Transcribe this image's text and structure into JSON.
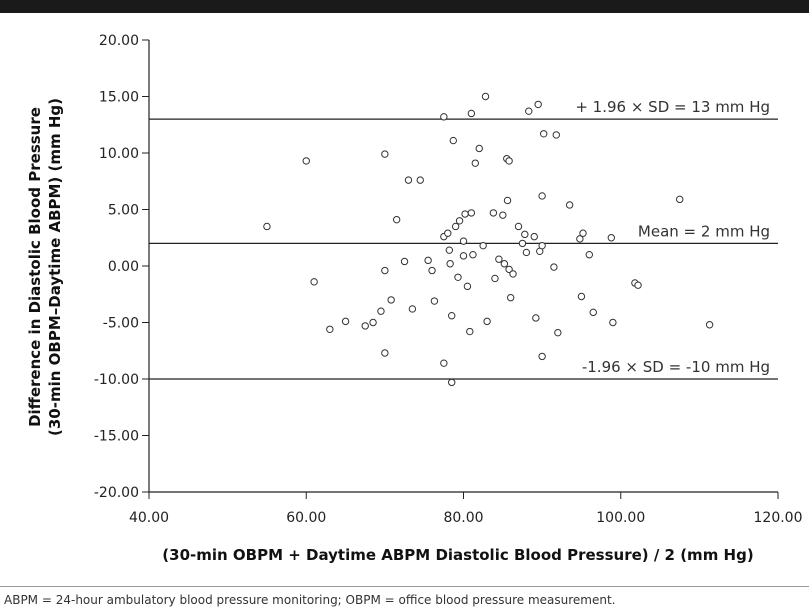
{
  "chart_data": {
    "type": "scatter",
    "xlabel": "(30-min OBPM + Daytime ABPM Diastolic Blood Pressure) / 2 (mm Hg)",
    "ylabel_line1": "Difference in Diastolic Blood Pressure",
    "ylabel_line2": "(30-min OBPM–Daytime ABPM) (mm Hg)",
    "xlim": [
      40,
      120
    ],
    "ylim": [
      -20,
      20
    ],
    "x_ticks": [
      {
        "value": 40,
        "label": "40.00"
      },
      {
        "value": 60,
        "label": "60.00"
      },
      {
        "value": 80,
        "label": "80.00"
      },
      {
        "value": 100,
        "label": "100.00"
      },
      {
        "value": 120,
        "label": "120.00"
      }
    ],
    "y_ticks": [
      {
        "value": 20,
        "label": "20.00"
      },
      {
        "value": 15,
        "label": "15.00"
      },
      {
        "value": 10,
        "label": "10.00"
      },
      {
        "value": 5,
        "label": "5.00"
      },
      {
        "value": 0,
        "label": "0.00"
      },
      {
        "value": -5,
        "label": "-5.00"
      },
      {
        "value": -10,
        "label": "-10.00"
      },
      {
        "value": -15,
        "label": "-15.00"
      },
      {
        "value": -20,
        "label": "-20.00"
      }
    ],
    "reference_lines": [
      {
        "y": 13,
        "label": "+ 1.96 × SD = 13 mm Hg"
      },
      {
        "y": 2,
        "label": "Mean = 2 mm Hg"
      },
      {
        "y": -10,
        "label": "-1.96 × SD = -10 mm Hg"
      }
    ],
    "points": [
      {
        "x": 55.0,
        "y": 3.5
      },
      {
        "x": 60.0,
        "y": 9.3
      },
      {
        "x": 61.0,
        "y": -1.4
      },
      {
        "x": 63.0,
        "y": -5.6
      },
      {
        "x": 65.0,
        "y": -4.9
      },
      {
        "x": 67.5,
        "y": -5.3
      },
      {
        "x": 68.5,
        "y": -5.0
      },
      {
        "x": 69.5,
        "y": -4.0
      },
      {
        "x": 70.0,
        "y": 9.9
      },
      {
        "x": 70.0,
        "y": -0.4
      },
      {
        "x": 70.0,
        "y": -7.7
      },
      {
        "x": 70.8,
        "y": -3.0
      },
      {
        "x": 71.5,
        "y": 4.1
      },
      {
        "x": 72.5,
        "y": 0.4
      },
      {
        "x": 73.0,
        "y": 7.6
      },
      {
        "x": 73.5,
        "y": -3.8
      },
      {
        "x": 74.5,
        "y": 7.6
      },
      {
        "x": 75.5,
        "y": 0.5
      },
      {
        "x": 76.0,
        "y": -0.4
      },
      {
        "x": 76.3,
        "y": -3.1
      },
      {
        "x": 77.5,
        "y": 13.2
      },
      {
        "x": 77.5,
        "y": 2.6
      },
      {
        "x": 77.5,
        "y": -8.6
      },
      {
        "x": 78.0,
        "y": 2.9
      },
      {
        "x": 78.2,
        "y": 1.4
      },
      {
        "x": 78.3,
        "y": 0.2
      },
      {
        "x": 78.5,
        "y": -4.4
      },
      {
        "x": 78.5,
        "y": -10.3
      },
      {
        "x": 78.7,
        "y": 11.1
      },
      {
        "x": 79.0,
        "y": 3.5
      },
      {
        "x": 79.3,
        "y": -1.0
      },
      {
        "x": 79.5,
        "y": 4.0
      },
      {
        "x": 80.0,
        "y": 2.2
      },
      {
        "x": 80.0,
        "y": 0.9
      },
      {
        "x": 80.2,
        "y": 4.6
      },
      {
        "x": 80.5,
        "y": -1.8
      },
      {
        "x": 80.8,
        "y": -5.8
      },
      {
        "x": 81.0,
        "y": 4.7
      },
      {
        "x": 81.0,
        "y": 13.5
      },
      {
        "x": 81.2,
        "y": 1.0
      },
      {
        "x": 81.5,
        "y": 9.1
      },
      {
        "x": 82.0,
        "y": 10.4
      },
      {
        "x": 82.5,
        "y": 1.8
      },
      {
        "x": 82.8,
        "y": 15.0
      },
      {
        "x": 83.0,
        "y": -4.9
      },
      {
        "x": 83.8,
        "y": 4.7
      },
      {
        "x": 84.0,
        "y": -1.1
      },
      {
        "x": 84.5,
        "y": 0.6
      },
      {
        "x": 85.0,
        "y": 4.5
      },
      {
        "x": 85.2,
        "y": 0.2
      },
      {
        "x": 85.5,
        "y": 9.5
      },
      {
        "x": 85.6,
        "y": 5.8
      },
      {
        "x": 85.8,
        "y": 9.3
      },
      {
        "x": 85.8,
        "y": -0.3
      },
      {
        "x": 86.0,
        "y": -2.8
      },
      {
        "x": 86.3,
        "y": -0.7
      },
      {
        "x": 87.0,
        "y": 3.5
      },
      {
        "x": 87.5,
        "y": 2.0
      },
      {
        "x": 87.8,
        "y": 2.8
      },
      {
        "x": 88.0,
        "y": 1.2
      },
      {
        "x": 88.3,
        "y": 13.7
      },
      {
        "x": 89.0,
        "y": 2.6
      },
      {
        "x": 89.2,
        "y": -4.6
      },
      {
        "x": 89.5,
        "y": 14.3
      },
      {
        "x": 89.7,
        "y": 1.3
      },
      {
        "x": 90.0,
        "y": 6.2
      },
      {
        "x": 90.0,
        "y": 1.8
      },
      {
        "x": 90.0,
        "y": -8.0
      },
      {
        "x": 90.2,
        "y": 11.7
      },
      {
        "x": 91.5,
        "y": -0.1
      },
      {
        "x": 91.8,
        "y": 11.6
      },
      {
        "x": 92.0,
        "y": -5.9
      },
      {
        "x": 93.5,
        "y": 5.4
      },
      {
        "x": 94.8,
        "y": 2.4
      },
      {
        "x": 95.0,
        "y": -2.7
      },
      {
        "x": 95.2,
        "y": 2.9
      },
      {
        "x": 96.0,
        "y": 1.0
      },
      {
        "x": 96.5,
        "y": -4.1
      },
      {
        "x": 98.8,
        "y": 2.5
      },
      {
        "x": 99.0,
        "y": -5.0
      },
      {
        "x": 101.8,
        "y": -1.5
      },
      {
        "x": 102.2,
        "y": -1.7
      },
      {
        "x": 107.5,
        "y": 5.9
      },
      {
        "x": 111.3,
        "y": -5.2
      }
    ]
  },
  "footnote": "ABPM = 24-hour ambulatory blood pressure monitoring; OBPM = office blood pressure measurement."
}
